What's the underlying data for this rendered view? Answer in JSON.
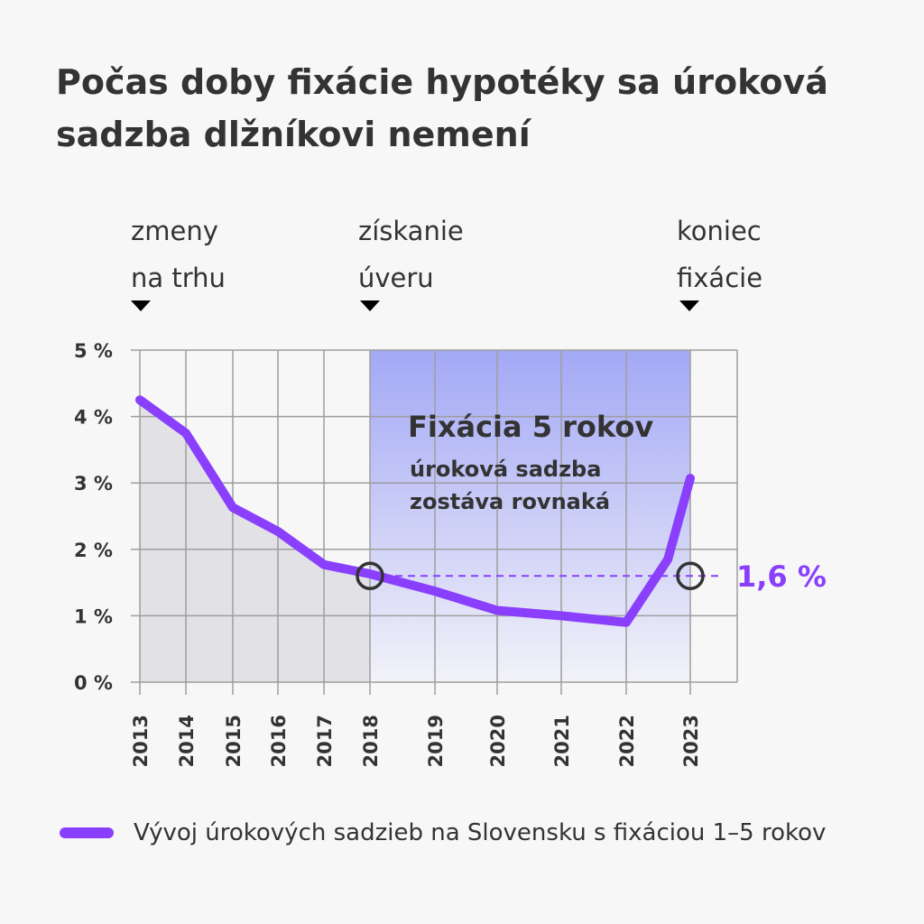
{
  "title_lines": [
    "Počas doby fixácie hypotéky sa úroková",
    "sadzba dlžníkovi nemení"
  ],
  "phases": [
    {
      "label_lines": [
        "zmeny",
        "na trhu"
      ]
    },
    {
      "label_lines": [
        "získanie",
        "úveru"
      ]
    },
    {
      "label_lines": [
        "koniec",
        "fixácie"
      ]
    }
  ],
  "colors": {
    "line": "#8a3ffc",
    "history_fill": "#e2e2e6",
    "fixation_top": "#a3a8f5",
    "fixation_bottom": "#f2f2f8",
    "grid": "#9e9e9e",
    "text": "#333333",
    "marker": "#333333"
  },
  "chart_data": {
    "type": "line",
    "title": "Počas doby fixácie hypotéky sa úroková sadzba dlžníkovi nemení",
    "x_ticks": [
      "2013",
      "2014",
      "2015",
      "2016",
      "2017",
      "2018",
      "2019",
      "2020",
      "2021",
      "2022",
      "2023"
    ],
    "y_ticks": [
      "0 %",
      "1 %",
      "2 %",
      "3 %",
      "4 %",
      "5 %"
    ],
    "ylim": [
      0,
      5
    ],
    "grid": true,
    "series": [
      {
        "name": "Vývoj úrokových sadzieb na Slovensku s fixáciou 1–5 rokov",
        "points": [
          {
            "x": 2013.0,
            "y": 4.25
          },
          {
            "x": 2014.0,
            "y": 3.75
          },
          {
            "x": 2015.0,
            "y": 2.63
          },
          {
            "x": 2016.0,
            "y": 2.27
          },
          {
            "x": 2017.0,
            "y": 1.77
          },
          {
            "x": 2018.0,
            "y": 1.63
          },
          {
            "x": 2019.0,
            "y": 1.37
          },
          {
            "x": 2020.0,
            "y": 1.08
          },
          {
            "x": 2021.0,
            "y": 1.0
          },
          {
            "x": 2022.0,
            "y": 0.9
          },
          {
            "x": 2022.65,
            "y": 1.85
          },
          {
            "x": 2023.0,
            "y": 3.07
          }
        ]
      }
    ],
    "fixation_period": {
      "from": "2018",
      "to": "2023"
    },
    "fixation_annotation": {
      "heading": "Fixácia 5 rokov",
      "text_lines": [
        "úroková sadzba",
        "zostáva rovnaká"
      ]
    },
    "fixed_rate": {
      "value": 1.6,
      "label": "1,6 %",
      "from": "2018",
      "to": "2023"
    },
    "legend": "Vývoj úrokových sadzieb na Slovensku s fixáciou 1–5 rokov"
  }
}
